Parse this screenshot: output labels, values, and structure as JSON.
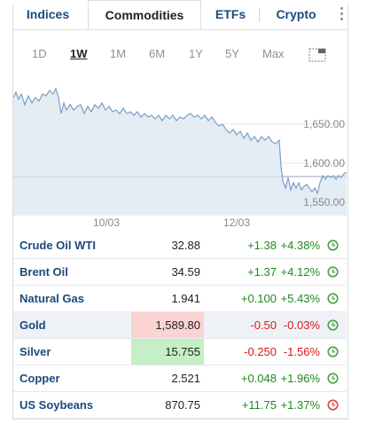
{
  "tabs": [
    {
      "label": "Indices",
      "active": false
    },
    {
      "label": "Commodities",
      "active": true
    },
    {
      "label": "ETFs",
      "active": false
    },
    {
      "label": "Crypto",
      "active": false
    }
  ],
  "periods": [
    {
      "label": "1D",
      "active": false
    },
    {
      "label": "1W",
      "active": true
    },
    {
      "label": "1M",
      "active": false
    },
    {
      "label": "6M",
      "active": false
    },
    {
      "label": "1Y",
      "active": false
    },
    {
      "label": "5Y",
      "active": false
    },
    {
      "label": "Max",
      "active": false
    }
  ],
  "chart": {
    "y_ticks": [
      "1,650.00",
      "1,600.00",
      "1,550.00"
    ],
    "x_ticks": [
      "10/03",
      "12/03"
    ]
  },
  "rows": [
    {
      "name": "Crude Oil WTI",
      "price": "32.88",
      "change": "+1.38",
      "pct": "+4.38%",
      "dir": "up",
      "price_flash": "",
      "clock": "green"
    },
    {
      "name": "Brent Oil",
      "price": "34.59",
      "change": "+1.37",
      "pct": "+4.12%",
      "dir": "up",
      "price_flash": "",
      "clock": "green"
    },
    {
      "name": "Natural Gas",
      "price": "1.941",
      "change": "+0.100",
      "pct": "+5.43%",
      "dir": "up",
      "price_flash": "",
      "clock": "green"
    },
    {
      "name": "Gold",
      "price": "1,589.80",
      "change": "-0.50",
      "pct": "-0.03%",
      "dir": "down",
      "price_flash": "down",
      "clock": "green"
    },
    {
      "name": "Silver",
      "price": "15.755",
      "change": "-0.250",
      "pct": "-1.56%",
      "dir": "down",
      "price_flash": "up",
      "clock": "green"
    },
    {
      "name": "Copper",
      "price": "2.521",
      "change": "+0.048",
      "pct": "+1.96%",
      "dir": "up",
      "price_flash": "",
      "clock": "green"
    },
    {
      "name": "US Soybeans",
      "price": "870.75",
      "change": "+11.75",
      "pct": "+1.37%",
      "dir": "up",
      "price_flash": "",
      "clock": "red"
    }
  ],
  "colors": {
    "link": "#1a4a7c",
    "positive": "#1f8a1f",
    "negative": "#d91a1a",
    "chart_line": "#7aa0c7",
    "chart_fill": "#dbe6f0",
    "clock_green": "#47a447",
    "clock_red": "#e04848"
  }
}
